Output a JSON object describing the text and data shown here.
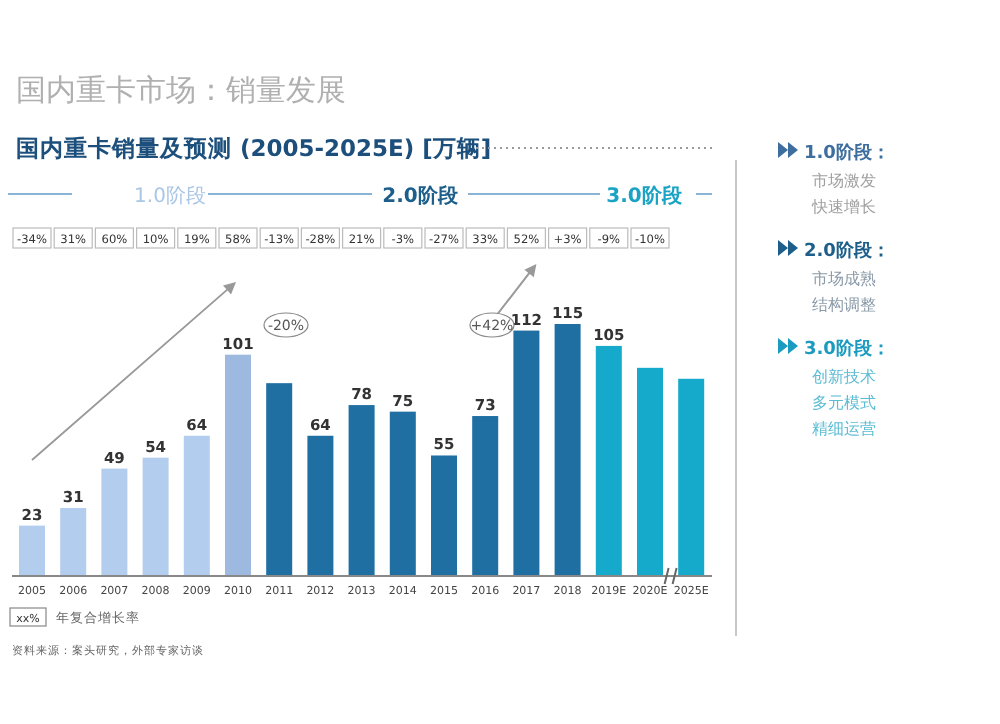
{
  "chart_data": {
    "type": "bar",
    "title": "国内重卡市场：销量发展",
    "subtitle": "国内重卡销量及预测 (2005-2025E) [万辆]",
    "categories": [
      "2005",
      "2006",
      "2007",
      "2008",
      "2009",
      "2010",
      "2011",
      "2012",
      "2013",
      "2014",
      "2015",
      "2016",
      "2017",
      "2018",
      "2019E",
      "2020E",
      "2025E"
    ],
    "values": [
      23,
      31,
      49,
      54,
      64,
      101,
      88,
      64,
      78,
      75,
      55,
      73,
      112,
      115,
      105,
      95,
      90
    ],
    "value_labels": [
      "23",
      "31",
      "49",
      "54",
      "64",
      "101",
      null,
      "64",
      "78",
      "75",
      "55",
      "73",
      "112",
      "115",
      "105",
      null,
      null
    ],
    "colors": [
      "#b3cdef",
      "#b3cdef",
      "#b3cdef",
      "#b3cdef",
      "#b3cdef",
      "#9db9e0",
      "#1f6fa3",
      "#1f6fa3",
      "#1f6fa3",
      "#1f6fa3",
      "#1f6fa3",
      "#1f6fa3",
      "#1f6fa3",
      "#1f6fa3",
      "#15aacb",
      "#15aacb",
      "#15aacb"
    ],
    "annotations": [
      "-34%",
      "31%",
      "60%",
      "10%",
      "19%",
      "58%",
      "-13%",
      "-28%",
      "21%",
      "-3%",
      "-27%",
      "33%",
      "52%",
      "+3%",
      "-9%",
      "-10%",
      "1.0阶段",
      "2.0阶段",
      "3.0阶段",
      "-20%",
      "+42%",
      "xx%",
      "年复合增长率",
      "资料来源：案头研究，外部专家访谈",
      "1.0阶段：",
      "市场激发",
      "快速增长",
      "2.0阶段：",
      "市场成熟",
      "结构调整",
      "3.0阶段：",
      "创新技术",
      "多元模式",
      "精细运营"
    ]
  }
}
